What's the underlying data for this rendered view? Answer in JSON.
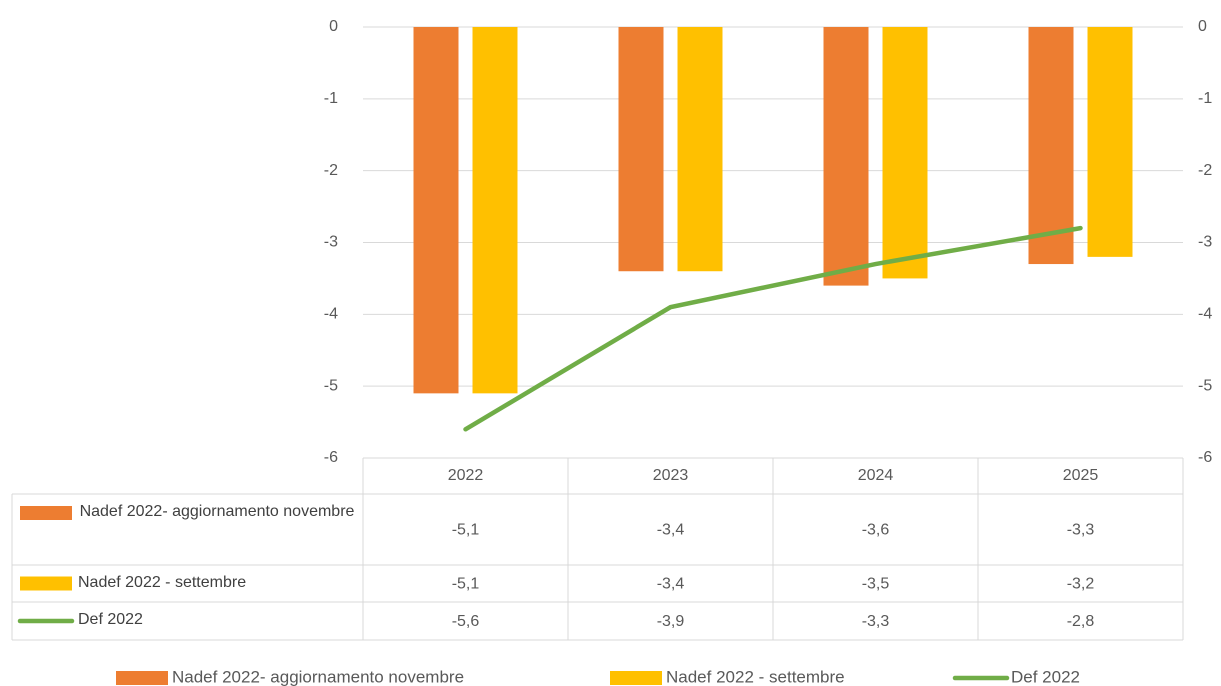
{
  "chart_data": {
    "type": "bar",
    "categories": [
      "2022",
      "2023",
      "2024",
      "2025"
    ],
    "series": [
      {
        "name": "Nadef 2022- aggiornamento novembre",
        "color": "#ED7D31",
        "values": [
          -5.1,
          -3.4,
          -3.6,
          -3.3
        ],
        "value_labels": [
          "-5,1",
          "-3,4",
          "-3,6",
          "-3,3"
        ]
      },
      {
        "name": "Nadef 2022 - settembre",
        "color": "#FFC000",
        "values": [
          -5.1,
          -3.4,
          -3.5,
          -3.2
        ],
        "value_labels": [
          "-5,1",
          "-3,4",
          "-3,5",
          "-3,2"
        ]
      },
      {
        "name": "Def 2022",
        "color": "#70AD47",
        "type": "line",
        "axis": "y2",
        "values": [
          -5.6,
          -3.9,
          -3.3,
          -2.8
        ],
        "value_labels": [
          "-5,6",
          "-3,9",
          "-3,3",
          "-2,8"
        ]
      }
    ],
    "ylim": [
      -6,
      0
    ],
    "yticks": [
      0,
      -1,
      -2,
      -3,
      -4,
      -5,
      -6
    ],
    "y2lim": [
      -6,
      0
    ],
    "y2ticks": [
      0,
      -1,
      -2,
      -3,
      -4,
      -5,
      -6
    ],
    "grid": true,
    "legend": "bottom",
    "data_table": true
  }
}
